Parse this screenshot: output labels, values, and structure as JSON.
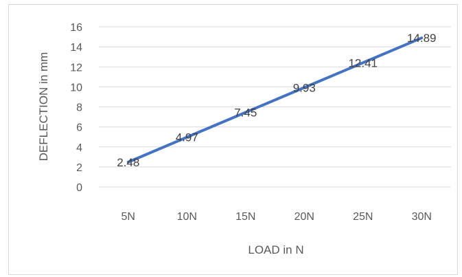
{
  "chart_data": {
    "type": "line",
    "title": "",
    "xlabel": "LOAD in N",
    "ylabel": "DEFLECTION in mm",
    "categories": [
      "5N",
      "10N",
      "15N",
      "20N",
      "25N",
      "30N"
    ],
    "series": [
      {
        "values": [
          2.48,
          4.97,
          7.45,
          9.93,
          12.41,
          14.89
        ],
        "data_labels": [
          "2.48",
          "4.97",
          "7.45",
          "9.93",
          "12.41",
          "14.89"
        ],
        "color": "#4472c4"
      }
    ],
    "ylim": [
      0,
      16
    ],
    "yticks": [
      "0",
      "2",
      "4",
      "6",
      "8",
      "10",
      "12",
      "14",
      "16"
    ],
    "grid": true,
    "legend": "none"
  }
}
